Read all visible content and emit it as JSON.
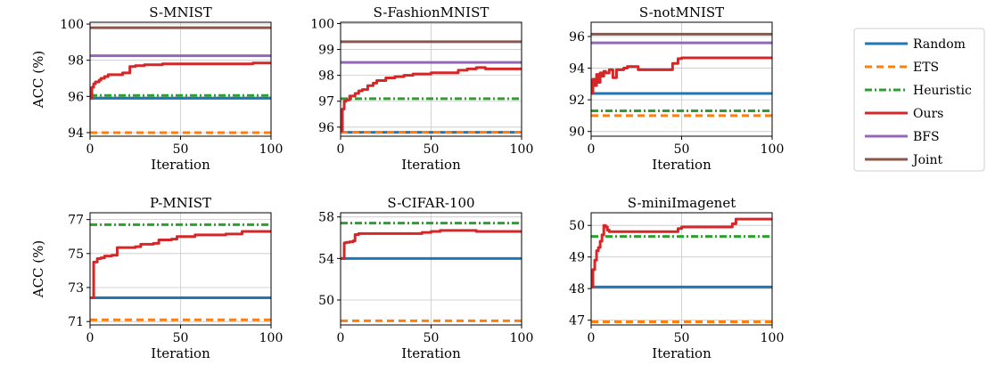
{
  "legend": {
    "entries": [
      {
        "name": "Random",
        "color": "#1f77b4",
        "dash": "solid"
      },
      {
        "name": "ETS",
        "color": "#ff7f0e",
        "dash": "dashed"
      },
      {
        "name": "Heuristic",
        "color": "#2ca02c",
        "dash": "dashdot"
      },
      {
        "name": "Ours",
        "color": "#d62728",
        "dash": "solid"
      },
      {
        "name": "BFS",
        "color": "#9467bd",
        "dash": "solid"
      },
      {
        "name": "Joint",
        "color": "#8c564b",
        "dash": "solid"
      }
    ]
  },
  "chart_data": [
    {
      "type": "line",
      "title": "S-MNIST",
      "xlabel": "Iteration",
      "ylabel": "ACC (%)",
      "xlim": [
        0,
        100
      ],
      "ylim": [
        93.8,
        100.1
      ],
      "xticks": [
        0,
        50,
        100
      ],
      "yticks": [
        94,
        96,
        98,
        100
      ],
      "grid": true,
      "series": [
        {
          "name": "Random",
          "x": [
            0,
            100
          ],
          "y": [
            95.9,
            95.9
          ]
        },
        {
          "name": "ETS",
          "x": [
            0,
            100
          ],
          "y": [
            94.0,
            94.0
          ]
        },
        {
          "name": "Heuristic",
          "x": [
            0,
            100
          ],
          "y": [
            96.05,
            96.05
          ]
        },
        {
          "name": "Ours",
          "x": [
            0,
            1,
            2,
            3,
            5,
            6,
            8,
            10,
            15,
            18,
            20,
            22,
            25,
            30,
            40,
            50,
            60,
            70,
            80,
            85,
            90,
            95,
            100
          ],
          "y": [
            95.9,
            96.5,
            96.7,
            96.8,
            96.9,
            97.0,
            97.1,
            97.2,
            97.2,
            97.3,
            97.3,
            97.65,
            97.7,
            97.75,
            97.8,
            97.8,
            97.8,
            97.8,
            97.8,
            97.8,
            97.85,
            97.85,
            97.9
          ]
        },
        {
          "name": "BFS",
          "x": [
            0,
            100
          ],
          "y": [
            98.25,
            98.25
          ]
        },
        {
          "name": "Joint",
          "x": [
            0,
            100
          ],
          "y": [
            99.8,
            99.8
          ]
        }
      ]
    },
    {
      "type": "line",
      "title": "S-FashionMNIST",
      "xlabel": "Iteration",
      "ylabel": "",
      "xlim": [
        0,
        100
      ],
      "ylim": [
        95.65,
        100.05
      ],
      "xticks": [
        0,
        50,
        100
      ],
      "yticks": [
        96,
        97,
        98,
        99,
        100
      ],
      "grid": true,
      "series": [
        {
          "name": "Random",
          "x": [
            0,
            100
          ],
          "y": [
            95.8,
            95.8
          ]
        },
        {
          "name": "ETS",
          "x": [
            0,
            100
          ],
          "y": [
            95.8,
            95.8
          ]
        },
        {
          "name": "Heuristic",
          "x": [
            0,
            100
          ],
          "y": [
            97.1,
            97.1
          ]
        },
        {
          "name": "Ours",
          "x": [
            0,
            1,
            2,
            3,
            5,
            8,
            10,
            12,
            15,
            18,
            20,
            25,
            30,
            35,
            40,
            50,
            55,
            60,
            65,
            70,
            75,
            80,
            85,
            90,
            95,
            100
          ],
          "y": [
            95.85,
            96.7,
            97.0,
            97.05,
            97.2,
            97.3,
            97.4,
            97.45,
            97.6,
            97.7,
            97.8,
            97.9,
            97.95,
            98.0,
            98.05,
            98.1,
            98.1,
            98.1,
            98.2,
            98.25,
            98.3,
            98.25,
            98.25,
            98.25,
            98.25,
            98.25
          ]
        },
        {
          "name": "BFS",
          "x": [
            0,
            100
          ],
          "y": [
            98.5,
            98.5
          ]
        },
        {
          "name": "Joint",
          "x": [
            0,
            100
          ],
          "y": [
            99.3,
            99.3
          ]
        }
      ]
    },
    {
      "type": "line",
      "title": "S-notMNIST",
      "xlabel": "Iteration",
      "ylabel": "",
      "xlim": [
        0,
        100
      ],
      "ylim": [
        89.7,
        96.9
      ],
      "xticks": [
        0,
        50,
        100
      ],
      "yticks": [
        90,
        92,
        94,
        96
      ],
      "grid": true,
      "series": [
        {
          "name": "Random",
          "x": [
            0,
            100
          ],
          "y": [
            92.4,
            92.4
          ]
        },
        {
          "name": "ETS",
          "x": [
            0,
            100
          ],
          "y": [
            91.0,
            91.0
          ]
        },
        {
          "name": "Heuristic",
          "x": [
            0,
            100
          ],
          "y": [
            91.3,
            91.3
          ]
        },
        {
          "name": "Ours",
          "x": [
            0,
            1,
            2,
            3,
            4,
            5,
            6,
            7,
            8,
            10,
            12,
            14,
            15,
            18,
            20,
            22,
            25,
            26,
            30,
            35,
            40,
            45,
            48,
            50,
            60,
            70,
            80,
            90,
            100
          ],
          "y": [
            92.4,
            93.3,
            92.9,
            93.6,
            93.1,
            93.7,
            93.5,
            93.8,
            93.7,
            93.9,
            93.4,
            93.9,
            93.9,
            94.0,
            94.1,
            94.1,
            94.1,
            93.9,
            93.9,
            93.9,
            93.9,
            94.3,
            94.6,
            94.65,
            94.65,
            94.65,
            94.65,
            94.65,
            94.65
          ]
        },
        {
          "name": "BFS",
          "x": [
            0,
            100
          ],
          "y": [
            95.6,
            95.6
          ]
        },
        {
          "name": "Joint",
          "x": [
            0,
            100
          ],
          "y": [
            96.15,
            96.15
          ]
        }
      ]
    },
    {
      "type": "line",
      "title": "P-MNIST",
      "xlabel": "Iteration",
      "ylabel": "ACC (%)",
      "xlim": [
        0,
        100
      ],
      "ylim": [
        70.8,
        77.4
      ],
      "xticks": [
        0,
        50,
        100
      ],
      "yticks": [
        71,
        73,
        75,
        77
      ],
      "grid": true,
      "series": [
        {
          "name": "Random",
          "x": [
            0,
            100
          ],
          "y": [
            72.4,
            72.4
          ]
        },
        {
          "name": "ETS",
          "x": [
            0,
            100
          ],
          "y": [
            71.1,
            71.1
          ]
        },
        {
          "name": "Heuristic",
          "x": [
            0,
            100
          ],
          "y": [
            76.7,
            76.7
          ]
        },
        {
          "name": "Ours",
          "x": [
            0,
            2,
            4,
            6,
            8,
            12,
            15,
            25,
            28,
            35,
            38,
            45,
            48,
            55,
            58,
            70,
            75,
            80,
            84,
            90,
            100
          ],
          "y": [
            72.4,
            74.5,
            74.7,
            74.75,
            74.85,
            74.9,
            75.35,
            75.4,
            75.55,
            75.6,
            75.8,
            75.85,
            76.0,
            76.0,
            76.1,
            76.1,
            76.15,
            76.15,
            76.3,
            76.3,
            76.3
          ]
        },
        {
          "name": "BFS",
          "x": [],
          "y": []
        },
        {
          "name": "Joint",
          "x": [],
          "y": []
        }
      ]
    },
    {
      "type": "line",
      "title": "S-CIFAR-100",
      "xlabel": "Iteration",
      "ylabel": "",
      "xlim": [
        0,
        100
      ],
      "ylim": [
        47.6,
        58.4
      ],
      "xticks": [
        0,
        50,
        100
      ],
      "yticks": [
        50,
        54,
        58
      ],
      "grid": true,
      "series": [
        {
          "name": "Random",
          "x": [
            0,
            100
          ],
          "y": [
            54.0,
            54.0
          ]
        },
        {
          "name": "ETS",
          "x": [
            0,
            100
          ],
          "y": [
            48.0,
            48.0
          ]
        },
        {
          "name": "Heuristic",
          "x": [
            0,
            100
          ],
          "y": [
            57.4,
            57.4
          ]
        },
        {
          "name": "Ours",
          "x": [
            0,
            2,
            3,
            5,
            7,
            8,
            10,
            15,
            20,
            30,
            40,
            45,
            50,
            55,
            60,
            70,
            75,
            80,
            90,
            100
          ],
          "y": [
            54.0,
            55.5,
            55.55,
            55.6,
            55.7,
            56.3,
            56.4,
            56.4,
            56.4,
            56.4,
            56.4,
            56.5,
            56.6,
            56.7,
            56.7,
            56.7,
            56.6,
            56.6,
            56.6,
            56.6
          ]
        },
        {
          "name": "BFS",
          "x": [],
          "y": []
        },
        {
          "name": "Joint",
          "x": [],
          "y": []
        }
      ]
    },
    {
      "type": "line",
      "title": "S-miniImagenet",
      "xlabel": "Iteration",
      "ylabel": "",
      "xlim": [
        0,
        100
      ],
      "ylim": [
        46.85,
        50.4
      ],
      "xticks": [
        0,
        50,
        100
      ],
      "yticks": [
        47,
        48,
        49,
        50
      ],
      "grid": true,
      "series": [
        {
          "name": "Random",
          "x": [
            0,
            100
          ],
          "y": [
            48.05,
            48.05
          ]
        },
        {
          "name": "ETS",
          "x": [
            0,
            100
          ],
          "y": [
            46.95,
            46.95
          ]
        },
        {
          "name": "Heuristic",
          "x": [
            0,
            100
          ],
          "y": [
            49.65,
            49.65
          ]
        },
        {
          "name": "Ours",
          "x": [
            0,
            1,
            2,
            3,
            4,
            5,
            6,
            7,
            8,
            9,
            10,
            12,
            15,
            20,
            30,
            40,
            48,
            50,
            60,
            70,
            75,
            78,
            80,
            90,
            100
          ],
          "y": [
            48.05,
            48.6,
            48.9,
            49.2,
            49.3,
            49.5,
            49.7,
            50.0,
            49.95,
            49.85,
            49.8,
            49.8,
            49.8,
            49.8,
            49.8,
            49.8,
            49.9,
            49.95,
            49.95,
            49.95,
            49.95,
            50.05,
            50.2,
            50.2,
            50.2
          ]
        },
        {
          "name": "BFS",
          "x": [],
          "y": []
        },
        {
          "name": "Joint",
          "x": [],
          "y": []
        }
      ]
    }
  ]
}
